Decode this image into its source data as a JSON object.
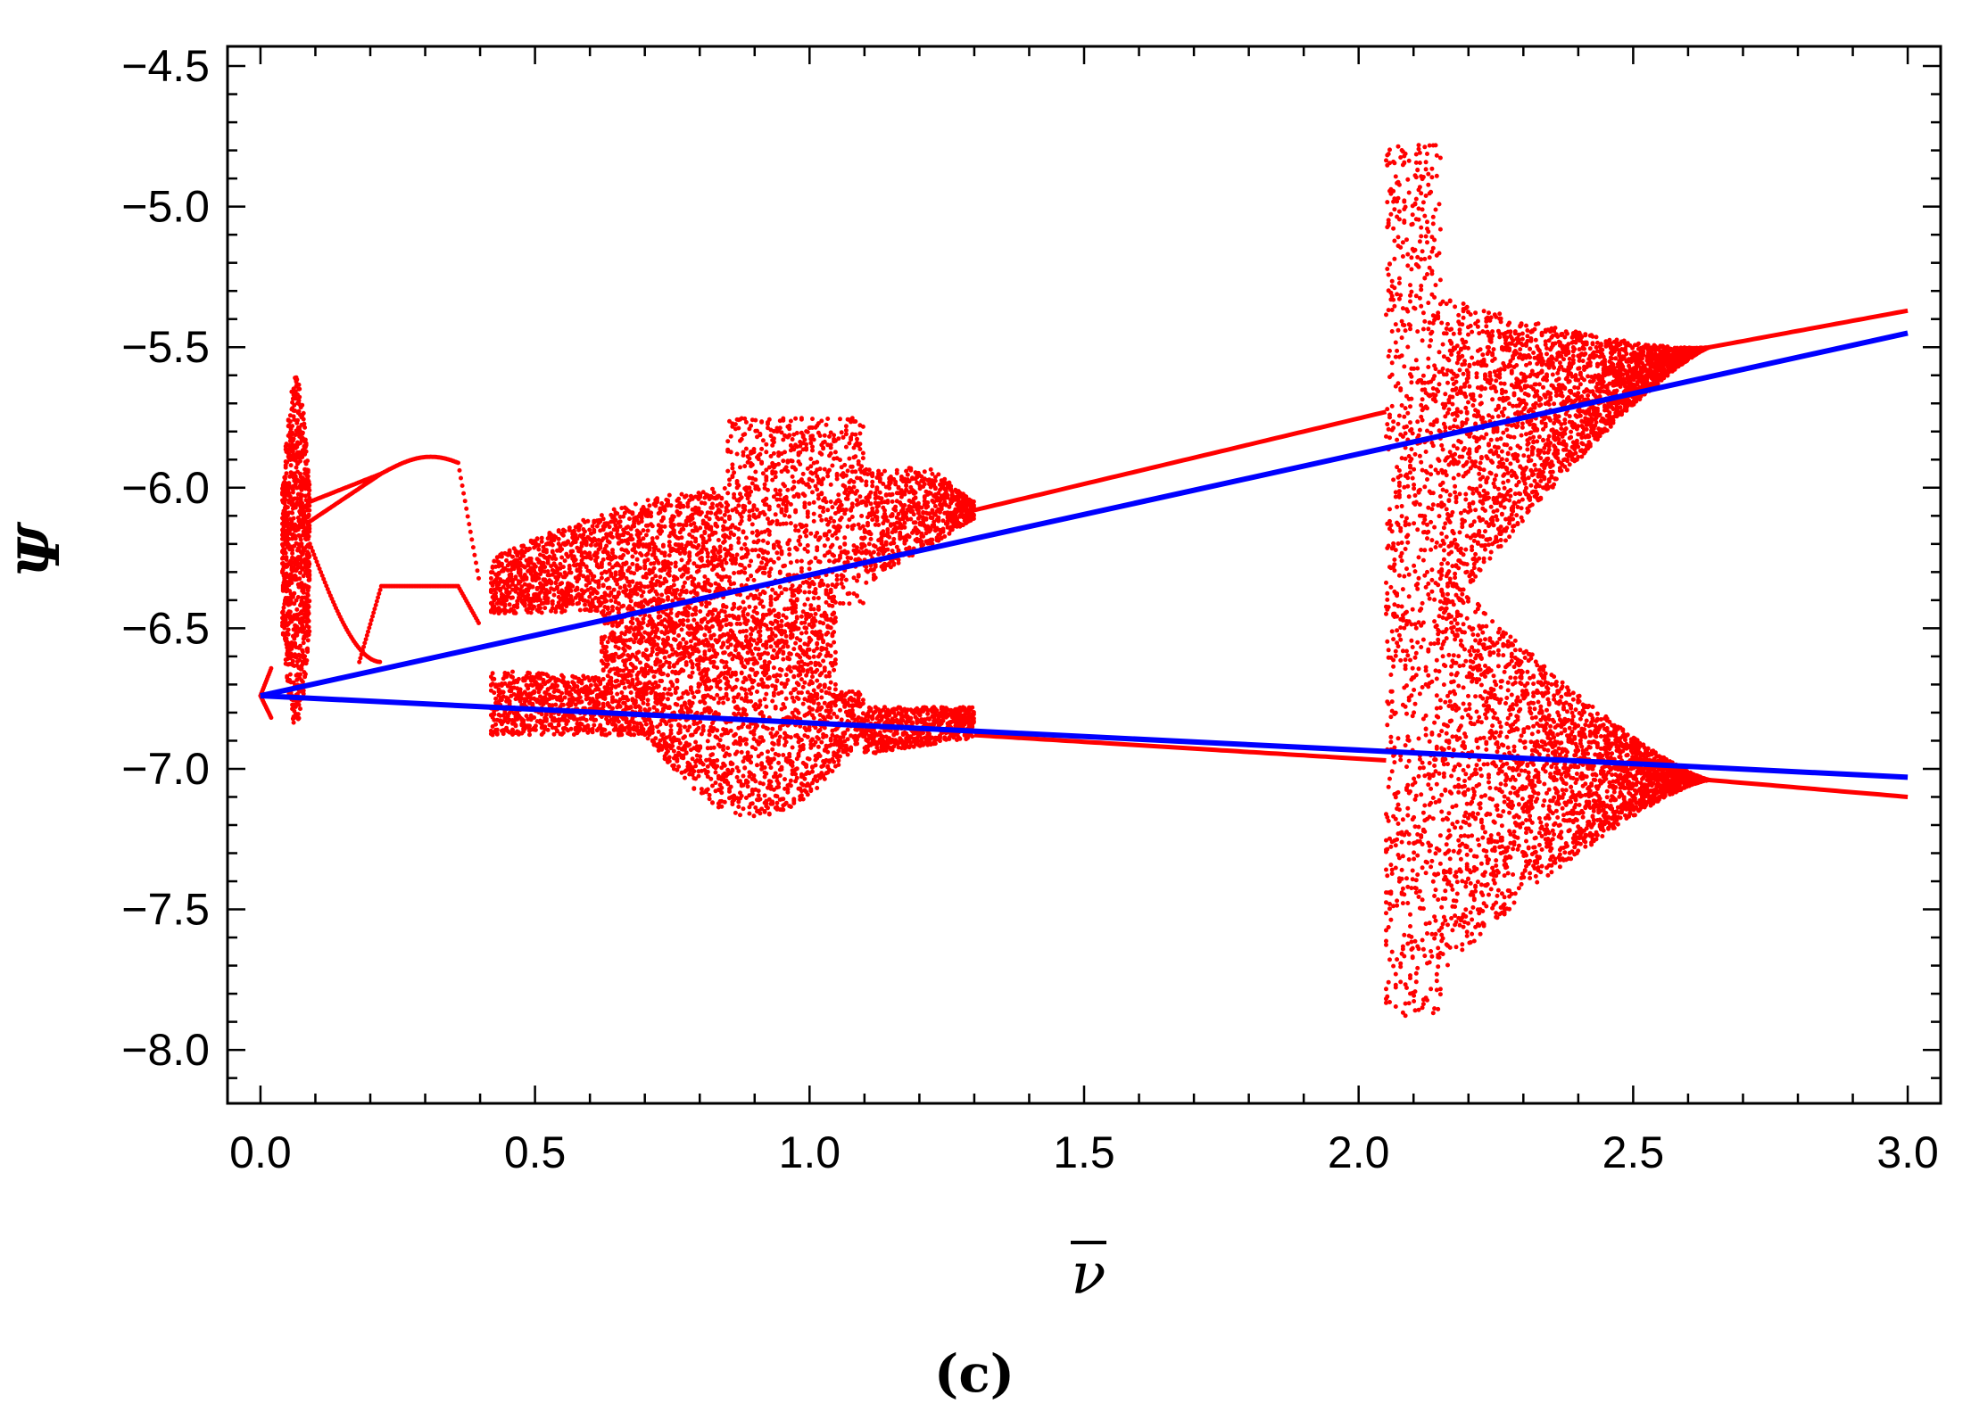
{
  "chart_data": {
    "type": "scatter",
    "title": "",
    "xlabel": "ν̄",
    "ylabel": "Ψ",
    "panel_label": "(c)",
    "xlim": [
      -0.06,
      3.06
    ],
    "ylim": [
      -8.19,
      -4.43
    ],
    "x_ticks": [
      0.0,
      0.5,
      1.0,
      1.5,
      2.0,
      2.5,
      3.0
    ],
    "x_tick_labels": [
      "0.0",
      "0.5",
      "1.0",
      "1.5",
      "2.0",
      "2.5",
      "3.0"
    ],
    "y_ticks": [
      -4.5,
      -5.0,
      -5.5,
      -6.0,
      -6.5,
      -7.0,
      -7.5,
      -8.0
    ],
    "y_tick_labels": [
      "−4.5",
      "−5.0",
      "−5.5",
      "−6.0",
      "−6.5",
      "−7.0",
      "−7.5",
      "−8.0"
    ],
    "grid": false,
    "colors": {
      "bifurcation": "#ff0000",
      "fixed_points": "#0000ff"
    },
    "series": [
      {
        "color": "#ff0000",
        "kind": "bifurcation-points",
        "regions": [
          {
            "x": [
              0.0,
              0.09
            ],
            "y": [
              -6.88,
              -5.58
            ]
          },
          {
            "x": [
              0.42,
              1.3
            ],
            "y": [
              -7.25,
              -5.72
            ]
          },
          {
            "x": [
              2.05,
              2.64
            ],
            "y": [
              -7.88,
              -4.78
            ]
          }
        ],
        "upper_branch": [
          [
            0.0,
            -6.74
          ],
          [
            0.5,
            -6.49
          ],
          [
            1.0,
            -6.26
          ],
          [
            1.3,
            -6.08
          ],
          [
            2.05,
            -5.73
          ],
          [
            2.64,
            -5.5
          ],
          [
            3.0,
            -5.37
          ]
        ],
        "lower_branch": [
          [
            0.0,
            -6.74
          ],
          [
            0.5,
            -6.77
          ],
          [
            1.0,
            -6.82
          ],
          [
            1.3,
            -6.88
          ],
          [
            2.05,
            -6.97
          ],
          [
            2.64,
            -7.04
          ],
          [
            3.0,
            -7.1
          ]
        ]
      },
      {
        "color": "#0000ff",
        "kind": "lines",
        "upper_line": [
          [
            0.0,
            -6.74
          ],
          [
            3.0,
            -5.45
          ]
        ],
        "lower_line": [
          [
            0.0,
            -6.74
          ],
          [
            3.0,
            -7.03
          ]
        ]
      }
    ]
  }
}
